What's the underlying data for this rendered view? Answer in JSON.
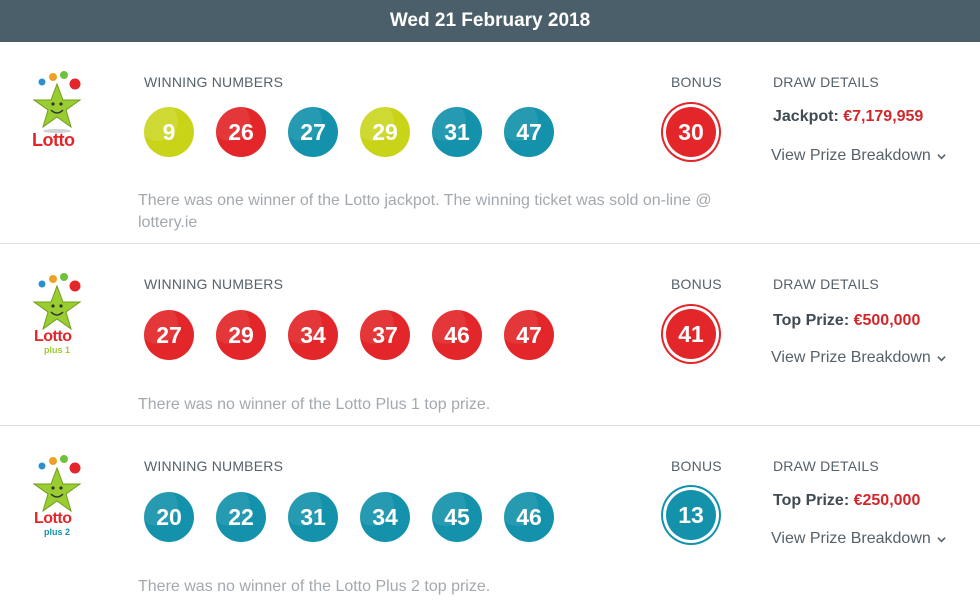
{
  "header": {
    "date": "Wed 21 February 2018"
  },
  "labels": {
    "winning_numbers": "WINNING NUMBERS",
    "bonus": "BONUS",
    "draw_details": "DRAW DETAILS",
    "view_breakdown": "View Prize Breakdown"
  },
  "colors": {
    "red": "#e2262a",
    "teal": "#1492ab",
    "yellow": "#c9d418",
    "header_bg": "#4b5f6b",
    "prize_red": "#d3262a"
  },
  "draws": [
    {
      "game": "Lotto",
      "logo_icon": "lotto-logo-icon",
      "logo_text": "Lotto",
      "logo_sub": "",
      "numbers": [
        {
          "n": "9",
          "color": "yellow"
        },
        {
          "n": "26",
          "color": "red"
        },
        {
          "n": "27",
          "color": "teal"
        },
        {
          "n": "29",
          "color": "yellow"
        },
        {
          "n": "31",
          "color": "teal"
        },
        {
          "n": "47",
          "color": "teal"
        }
      ],
      "bonus": {
        "n": "30",
        "color": "red"
      },
      "prize_label": "Jackpot",
      "prize_amount": "€7,179,959",
      "note": "There was one winner of the Lotto jackpot. The winning ticket was sold on-line @ lottery.ie"
    },
    {
      "game": "Lotto Plus 1",
      "logo_icon": "lotto-plus-1-logo-icon",
      "logo_text": "Lotto",
      "logo_sub": "plus 1",
      "numbers": [
        {
          "n": "27",
          "color": "red"
        },
        {
          "n": "29",
          "color": "red"
        },
        {
          "n": "34",
          "color": "red"
        },
        {
          "n": "37",
          "color": "red"
        },
        {
          "n": "46",
          "color": "red"
        },
        {
          "n": "47",
          "color": "red"
        }
      ],
      "bonus": {
        "n": "41",
        "color": "red"
      },
      "prize_label": "Top Prize",
      "prize_amount": "€500,000",
      "note": "There was no winner of the Lotto Plus 1 top prize."
    },
    {
      "game": "Lotto Plus 2",
      "logo_icon": "lotto-plus-2-logo-icon",
      "logo_text": "Lotto",
      "logo_sub": "plus 2",
      "numbers": [
        {
          "n": "20",
          "color": "teal"
        },
        {
          "n": "22",
          "color": "teal"
        },
        {
          "n": "31",
          "color": "teal"
        },
        {
          "n": "34",
          "color": "teal"
        },
        {
          "n": "45",
          "color": "teal"
        },
        {
          "n": "46",
          "color": "teal"
        }
      ],
      "bonus": {
        "n": "13",
        "color": "teal"
      },
      "prize_label": "Top Prize",
      "prize_amount": "€250,000",
      "note": "There was no winner of the Lotto Plus 2 top prize."
    }
  ]
}
